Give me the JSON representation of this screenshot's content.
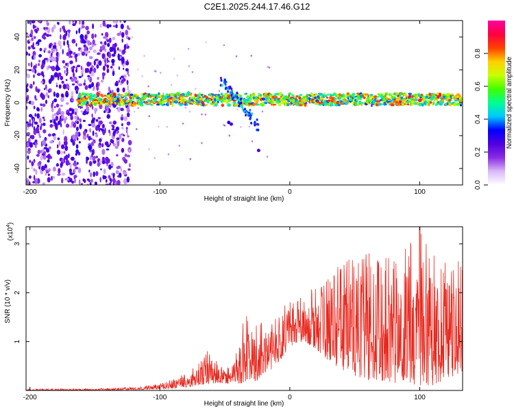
{
  "title": "C2E1.2025.244.17.46.G12",
  "chart_data": [
    {
      "type": "heatmap",
      "title": "C2E1.2025.244.17.46.G12",
      "xlabel": "Height of straight line (km)",
      "ylabel": "Frequency (Hz)",
      "xlim": [
        -203,
        133
      ],
      "ylim": [
        -50,
        50
      ],
      "xticks": [
        -200,
        -100,
        0,
        100
      ],
      "xtick_labels": [
        "-200",
        "-100",
        "0",
        "100"
      ],
      "yticks": [
        -40,
        -20,
        0,
        20,
        40
      ],
      "ytick_labels": [
        "-40",
        "-20",
        "0",
        "20",
        "40"
      ],
      "colorbar": {
        "label": "Normalized spectral amplitude",
        "range": [
          0,
          1
        ],
        "ticks": [
          0.0,
          0.2,
          0.4,
          0.6,
          0.8
        ],
        "tick_labels": [
          "0.0",
          "0.2",
          "0.4",
          "0.6",
          "0.8"
        ],
        "colors": [
          "#ffffff",
          "#d8b8f8",
          "#8a2be2",
          "#5000e0",
          "#0000ff",
          "#00c8ff",
          "#00ff90",
          "#40ff00",
          "#c8ff00",
          "#ffd000",
          "#ff4000",
          "#ff0040",
          "#ff00a0"
        ]
      },
      "regions": [
        {
          "name": "noise-scatter",
          "x_range": [
            -203,
            -125
          ],
          "freq_range": [
            -50,
            50
          ],
          "amplitude": "0.1-0.3"
        },
        {
          "name": "ridge",
          "x_range": [
            -163,
            133
          ],
          "center_freq": 2,
          "half_width": 4,
          "amplitude": "0.4-0.9"
        },
        {
          "name": "diagonal-feature",
          "x_range": [
            -52,
            -25
          ],
          "freq_range": [
            -28,
            14
          ],
          "amplitude": "0.2-0.5"
        }
      ]
    },
    {
      "type": "line",
      "xlabel": "Height of straight line (km)",
      "ylabel": "SNR (10 * v/v)",
      "y_scale_label": "(x10",
      "y_scale_exp": "4",
      "xlim": [
        -203,
        133
      ],
      "ylim": [
        0,
        3.35
      ],
      "xticks": [
        -200,
        -100,
        0,
        100
      ],
      "xtick_labels": [
        "-200",
        "-100",
        "0",
        "100"
      ],
      "yticks": [
        1,
        2,
        3
      ],
      "ytick_labels": [
        "1",
        "2",
        "3"
      ],
      "color": "#e8281e",
      "envelope": [
        {
          "x": -203,
          "low": 0.0,
          "high": 0.03
        },
        {
          "x": -150,
          "low": 0.0,
          "high": 0.04
        },
        {
          "x": -120,
          "low": 0.01,
          "high": 0.07
        },
        {
          "x": -100,
          "low": 0.03,
          "high": 0.14
        },
        {
          "x": -85,
          "low": 0.05,
          "high": 0.3
        },
        {
          "x": -75,
          "low": 0.08,
          "high": 0.48
        },
        {
          "x": -65,
          "low": 0.12,
          "high": 0.85
        },
        {
          "x": -55,
          "low": 0.15,
          "high": 0.6
        },
        {
          "x": -45,
          "low": 0.12,
          "high": 0.45
        },
        {
          "x": -35,
          "low": 0.15,
          "high": 1.55
        },
        {
          "x": -25,
          "low": 0.2,
          "high": 1.5
        },
        {
          "x": -15,
          "low": 0.4,
          "high": 1.4
        },
        {
          "x": -5,
          "low": 0.7,
          "high": 1.7
        },
        {
          "x": 0,
          "low": 0.9,
          "high": 1.9
        },
        {
          "x": 10,
          "low": 1.0,
          "high": 1.9
        },
        {
          "x": 20,
          "low": 0.85,
          "high": 2.2
        },
        {
          "x": 30,
          "low": 0.6,
          "high": 2.4
        },
        {
          "x": 40,
          "low": 0.4,
          "high": 2.6
        },
        {
          "x": 50,
          "low": 0.3,
          "high": 2.8
        },
        {
          "x": 60,
          "low": 0.2,
          "high": 2.9
        },
        {
          "x": 70,
          "low": 0.2,
          "high": 2.8
        },
        {
          "x": 80,
          "low": 0.15,
          "high": 2.9
        },
        {
          "x": 90,
          "low": 0.15,
          "high": 3.0
        },
        {
          "x": 100,
          "low": 0.1,
          "high": 3.35
        },
        {
          "x": 110,
          "low": 0.1,
          "high": 2.9
        },
        {
          "x": 120,
          "low": 0.2,
          "high": 2.8
        },
        {
          "x": 133,
          "low": 0.4,
          "high": 2.8
        }
      ],
      "peak": {
        "x": 100,
        "y": 3.35
      }
    }
  ]
}
